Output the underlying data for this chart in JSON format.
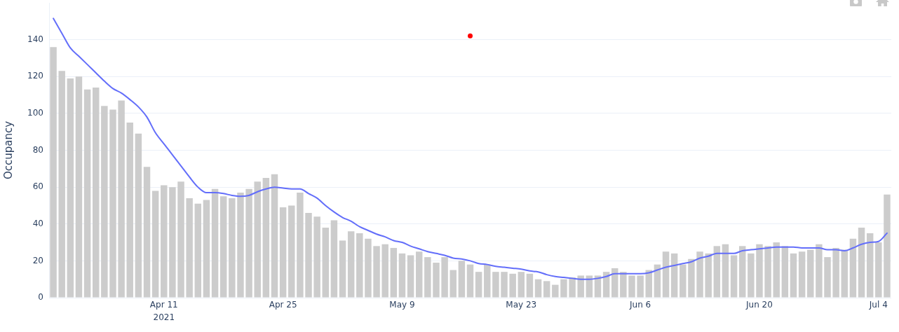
{
  "chart_data": {
    "type": "bar",
    "ylabel": "Occupancy",
    "x": [
      "2021-03-29",
      "2021-03-30",
      "2021-03-31",
      "2021-04-01",
      "2021-04-02",
      "2021-04-03",
      "2021-04-04",
      "2021-04-05",
      "2021-04-06",
      "2021-04-07",
      "2021-04-08",
      "2021-04-09",
      "2021-04-10",
      "2021-04-11",
      "2021-04-12",
      "2021-04-13",
      "2021-04-14",
      "2021-04-15",
      "2021-04-16",
      "2021-04-17",
      "2021-04-18",
      "2021-04-19",
      "2021-04-20",
      "2021-04-21",
      "2021-04-22",
      "2021-04-23",
      "2021-04-24",
      "2021-04-25",
      "2021-04-26",
      "2021-04-27",
      "2021-04-28",
      "2021-04-29",
      "2021-04-30",
      "2021-05-01",
      "2021-05-02",
      "2021-05-03",
      "2021-05-04",
      "2021-05-05",
      "2021-05-06",
      "2021-05-07",
      "2021-05-08",
      "2021-05-09",
      "2021-05-10",
      "2021-05-11",
      "2021-05-12",
      "2021-05-13",
      "2021-05-14",
      "2021-05-15",
      "2021-05-16",
      "2021-05-17",
      "2021-05-18",
      "2021-05-19",
      "2021-05-20",
      "2021-05-21",
      "2021-05-22",
      "2021-05-23",
      "2021-05-24",
      "2021-05-25",
      "2021-05-26",
      "2021-05-27",
      "2021-05-28",
      "2021-05-29",
      "2021-05-30",
      "2021-05-31",
      "2021-06-01",
      "2021-06-02",
      "2021-06-03",
      "2021-06-04",
      "2021-06-05",
      "2021-06-06",
      "2021-06-07",
      "2021-06-08",
      "2021-06-09",
      "2021-06-10",
      "2021-06-11",
      "2021-06-12",
      "2021-06-13",
      "2021-06-14",
      "2021-06-15",
      "2021-06-16",
      "2021-06-17",
      "2021-06-18",
      "2021-06-19",
      "2021-06-20",
      "2021-06-21",
      "2021-06-22",
      "2021-06-23",
      "2021-06-24",
      "2021-06-25",
      "2021-06-26",
      "2021-06-27",
      "2021-06-28",
      "2021-06-29",
      "2021-06-30",
      "2021-07-01",
      "2021-07-02",
      "2021-07-03",
      "2021-07-04",
      "2021-07-05"
    ],
    "series": [
      {
        "color": "#cccccc",
        "values": [
          136,
          123,
          119,
          120,
          113,
          114,
          104,
          102,
          107,
          95,
          89,
          71,
          58,
          61,
          60,
          63,
          54,
          51,
          53,
          59,
          55,
          54,
          57,
          59,
          63,
          65,
          67,
          49,
          50,
          57,
          46,
          44,
          38,
          42,
          31,
          36,
          35,
          32,
          28,
          29,
          27,
          24,
          23,
          25,
          22,
          19,
          22,
          15,
          20,
          18,
          14,
          18,
          14,
          14,
          13,
          14,
          13,
          10,
          9,
          7,
          10,
          11,
          12,
          12,
          12,
          14,
          16,
          14,
          12,
          12,
          15,
          18,
          25,
          24,
          18,
          21,
          25,
          24,
          28,
          29,
          23,
          28,
          24,
          29,
          28,
          30,
          28,
          24,
          25,
          26,
          29,
          22,
          27,
          26,
          32,
          38,
          35,
          30,
          56
        ]
      },
      {
        "type": "line",
        "color": "#636efa",
        "values": [
          151.5,
          143.5,
          135.5,
          131,
          126.5,
          122,
          117.5,
          113.5,
          111,
          107.5,
          103.5,
          98,
          89.5,
          83.5,
          77.5,
          71.5,
          65.5,
          60,
          57,
          57,
          56.5,
          55.5,
          55,
          55.5,
          57.5,
          59,
          60,
          59.5,
          59,
          59,
          56.5,
          54,
          50,
          46.5,
          43.5,
          41.5,
          38.5,
          36.5,
          34.5,
          33,
          31,
          30,
          28,
          26.5,
          25,
          24,
          23,
          21.5,
          21,
          20,
          18.5,
          18,
          17,
          16.5,
          16,
          15.5,
          14.5,
          14,
          12.5,
          11.5,
          11,
          10.5,
          10,
          10,
          10.5,
          11.5,
          13,
          13,
          13,
          13,
          13.5,
          15,
          16.5,
          17.5,
          18.5,
          19.5,
          21.5,
          22.5,
          24,
          24,
          24,
          25.5,
          26,
          26.5,
          27,
          27.5,
          27.5,
          27.5,
          27,
          27,
          27,
          26,
          26,
          25.5,
          27,
          29,
          30,
          30.5,
          35
        ]
      },
      {
        "type": "scatter",
        "color": "#ff0000",
        "marker": "circle",
        "x": [
          "2021-05-17"
        ],
        "values": [
          142
        ]
      }
    ],
    "xlim": [
      "2021-03-28T12:00",
      "2021-07-05T12:00"
    ],
    "xticks": [
      {
        "value": "2021-04-11",
        "label": "Apr 11\n2021"
      },
      {
        "value": "2021-04-25",
        "label": "Apr 25"
      },
      {
        "value": "2021-05-09",
        "label": "May 9"
      },
      {
        "value": "2021-05-23",
        "label": "May 23"
      },
      {
        "value": "2021-06-06",
        "label": "Jun 6"
      },
      {
        "value": "2021-06-20",
        "label": "Jun 20"
      },
      {
        "value": "2021-07-04",
        "label": "Jul 4"
      }
    ],
    "ylim": [
      0,
      160
    ],
    "yticks": [
      0,
      20,
      40,
      60,
      80,
      100,
      120,
      140
    ],
    "grid": "y"
  }
}
